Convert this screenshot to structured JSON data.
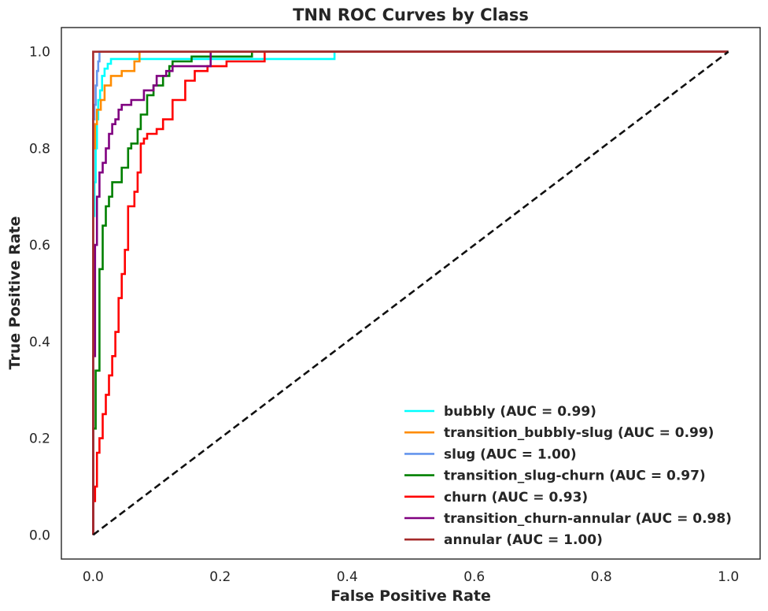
{
  "chart_data": {
    "type": "line",
    "title": "TNN ROC Curves by Class",
    "xlabel": "False Positive Rate",
    "ylabel": "True Positive Rate",
    "xlim": [
      -0.05,
      1.05
    ],
    "ylim": [
      -0.05,
      1.05
    ],
    "xticks": [
      "0.0",
      "0.2",
      "0.4",
      "0.6",
      "0.8",
      "1.0"
    ],
    "yticks": [
      "0.0",
      "0.2",
      "0.4",
      "0.6",
      "0.8",
      "1.0"
    ],
    "grid": false,
    "legend_position": "lower-right",
    "diagonal": {
      "x": [
        0,
        1
      ],
      "y": [
        0,
        1
      ],
      "color": "#111111",
      "dash": true
    },
    "series": [
      {
        "name": "bubbly (AUC = 0.99)",
        "color": "#00ffff",
        "x": [
          0,
          0,
          0.002,
          0.002,
          0.004,
          0.004,
          0.006,
          0.006,
          0.008,
          0.008,
          0.011,
          0.011,
          0.014,
          0.014,
          0.018,
          0.018,
          0.023,
          0.023,
          0.028,
          0.028,
          0.1,
          0.38,
          0.38,
          1.0
        ],
        "y": [
          0,
          0.66,
          0.66,
          0.73,
          0.73,
          0.8,
          0.8,
          0.86,
          0.86,
          0.9,
          0.9,
          0.92,
          0.92,
          0.95,
          0.95,
          0.965,
          0.965,
          0.975,
          0.975,
          0.985,
          0.985,
          0.985,
          1.0,
          1.0
        ]
      },
      {
        "name": "transition_bubbly-slug (AUC = 0.99)",
        "color": "#ff8c00",
        "x": [
          0,
          0,
          0.003,
          0.003,
          0.006,
          0.006,
          0.012,
          0.012,
          0.018,
          0.018,
          0.028,
          0.028,
          0.045,
          0.045,
          0.065,
          0.065,
          0.073,
          0.073,
          1.0
        ],
        "y": [
          0,
          0.8,
          0.8,
          0.85,
          0.85,
          0.88,
          0.88,
          0.9,
          0.9,
          0.93,
          0.93,
          0.95,
          0.95,
          0.96,
          0.96,
          0.98,
          0.98,
          1.0,
          1.0
        ]
      },
      {
        "name": "slug (AUC = 1.00)",
        "color": "#6495ed",
        "x": [
          0,
          0,
          0.002,
          0.002,
          0.004,
          0.004,
          0.006,
          0.006,
          0.008,
          0.008,
          0.01,
          0.01,
          1.0
        ],
        "y": [
          0,
          0.86,
          0.86,
          0.89,
          0.89,
          0.93,
          0.93,
          0.96,
          0.96,
          0.98,
          0.98,
          1.0,
          1.0
        ]
      },
      {
        "name": "transition_slug-churn (AUC = 0.97)",
        "color": "#008000",
        "x": [
          0,
          0,
          0.004,
          0.004,
          0.01,
          0.01,
          0.015,
          0.015,
          0.02,
          0.02,
          0.025,
          0.025,
          0.03,
          0.03,
          0.045,
          0.045,
          0.055,
          0.055,
          0.06,
          0.06,
          0.07,
          0.07,
          0.075,
          0.075,
          0.085,
          0.085,
          0.095,
          0.095,
          0.11,
          0.11,
          0.12,
          0.12,
          0.125,
          0.125,
          0.155,
          0.155,
          0.25,
          0.25,
          1.0
        ],
        "y": [
          0,
          0.22,
          0.22,
          0.34,
          0.34,
          0.55,
          0.55,
          0.64,
          0.64,
          0.68,
          0.68,
          0.7,
          0.7,
          0.73,
          0.73,
          0.76,
          0.76,
          0.8,
          0.8,
          0.81,
          0.81,
          0.84,
          0.84,
          0.87,
          0.87,
          0.91,
          0.91,
          0.93,
          0.93,
          0.95,
          0.95,
          0.97,
          0.97,
          0.98,
          0.98,
          0.99,
          0.99,
          1.0,
          1.0
        ]
      },
      {
        "name": "churn (AUC = 0.93)",
        "color": "#ff0000",
        "x": [
          0,
          0,
          0.003,
          0.003,
          0.006,
          0.006,
          0.01,
          0.01,
          0.015,
          0.015,
          0.02,
          0.02,
          0.025,
          0.025,
          0.03,
          0.03,
          0.035,
          0.035,
          0.04,
          0.04,
          0.045,
          0.045,
          0.05,
          0.05,
          0.055,
          0.055,
          0.065,
          0.065,
          0.07,
          0.07,
          0.075,
          0.075,
          0.08,
          0.08,
          0.085,
          0.085,
          0.1,
          0.1,
          0.11,
          0.11,
          0.125,
          0.125,
          0.145,
          0.145,
          0.16,
          0.16,
          0.18,
          0.18,
          0.21,
          0.21,
          0.27,
          0.27,
          1.0
        ],
        "y": [
          0,
          0.07,
          0.07,
          0.1,
          0.1,
          0.17,
          0.17,
          0.2,
          0.2,
          0.25,
          0.25,
          0.29,
          0.29,
          0.33,
          0.33,
          0.37,
          0.37,
          0.42,
          0.42,
          0.49,
          0.49,
          0.54,
          0.54,
          0.59,
          0.59,
          0.68,
          0.68,
          0.71,
          0.71,
          0.75,
          0.75,
          0.81,
          0.81,
          0.82,
          0.82,
          0.83,
          0.83,
          0.84,
          0.84,
          0.86,
          0.86,
          0.9,
          0.9,
          0.94,
          0.94,
          0.96,
          0.96,
          0.97,
          0.97,
          0.98,
          0.98,
          1.0,
          1.0
        ]
      },
      {
        "name": "transition_churn-annular (AUC = 0.98)",
        "color": "#800080",
        "x": [
          0,
          0,
          0.003,
          0.003,
          0.006,
          0.006,
          0.01,
          0.01,
          0.015,
          0.015,
          0.02,
          0.02,
          0.025,
          0.025,
          0.03,
          0.03,
          0.035,
          0.035,
          0.04,
          0.04,
          0.045,
          0.045,
          0.06,
          0.06,
          0.08,
          0.08,
          0.095,
          0.095,
          0.1,
          0.1,
          0.115,
          0.115,
          0.125,
          0.125,
          0.185,
          0.185,
          1.0
        ],
        "y": [
          0,
          0.37,
          0.37,
          0.6,
          0.6,
          0.7,
          0.7,
          0.75,
          0.75,
          0.77,
          0.77,
          0.8,
          0.8,
          0.83,
          0.83,
          0.85,
          0.85,
          0.86,
          0.86,
          0.88,
          0.88,
          0.89,
          0.89,
          0.9,
          0.9,
          0.92,
          0.92,
          0.93,
          0.93,
          0.95,
          0.95,
          0.96,
          0.96,
          0.97,
          0.97,
          1.0,
          1.0
        ]
      },
      {
        "name": "annular (AUC = 1.00)",
        "color": "#a52a2a",
        "x": [
          0,
          0,
          1.0
        ],
        "y": [
          0,
          1.0,
          1.0
        ]
      }
    ]
  }
}
